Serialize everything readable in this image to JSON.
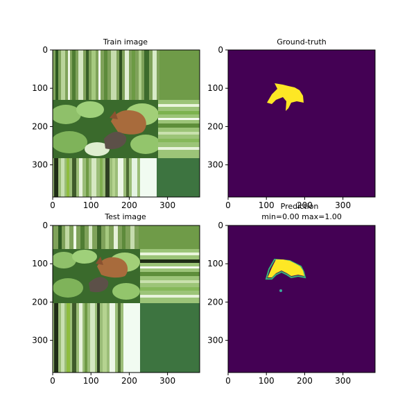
{
  "figure": {
    "panels": [
      {
        "id": "train-image",
        "title": "Train image",
        "xticks": [
          "0",
          "100",
          "200",
          "300"
        ],
        "yticks": [
          "0",
          "100",
          "200",
          "300"
        ]
      },
      {
        "id": "ground-truth",
        "title": "Ground-truth",
        "xticks": [
          "0",
          "100",
          "200",
          "300"
        ],
        "yticks": [
          "0",
          "100",
          "200",
          "300"
        ]
      },
      {
        "id": "test-image",
        "title": "Test image",
        "xticks": [
          "0",
          "100",
          "200",
          "300"
        ],
        "yticks": [
          "0",
          "100",
          "200",
          "300"
        ]
      },
      {
        "id": "prediction",
        "title": "Prediction",
        "subtitle": "min=0.00 max=1.00",
        "xticks": [
          "0",
          "100",
          "200",
          "300"
        ],
        "yticks": [
          "0",
          "100",
          "200",
          "300"
        ]
      }
    ]
  },
  "chart_data": [
    {
      "type": "heatmap",
      "title": "Train image",
      "xlim": [
        0,
        384
      ],
      "ylim": [
        384,
        0
      ],
      "xticks": [
        0,
        100,
        200,
        300
      ],
      "yticks": [
        0,
        100,
        200,
        300
      ],
      "content": "photo"
    },
    {
      "type": "heatmap",
      "title": "Ground-truth",
      "xlim": [
        0,
        384
      ],
      "ylim": [
        384,
        0
      ],
      "xticks": [
        0,
        100,
        200,
        300
      ],
      "yticks": [
        0,
        100,
        200,
        300
      ],
      "colors": {
        "background": "#440154",
        "mask": "#fde725"
      }
    },
    {
      "type": "heatmap",
      "title": "Test image",
      "xlim": [
        0,
        384
      ],
      "ylim": [
        384,
        0
      ],
      "xticks": [
        0,
        100,
        200,
        300
      ],
      "yticks": [
        0,
        100,
        200,
        300
      ],
      "content": "photo"
    },
    {
      "type": "heatmap",
      "title": "Prediction",
      "subtitle": "min=0.00 max=1.00",
      "value_range": [
        0.0,
        1.0
      ],
      "xlim": [
        0,
        384
      ],
      "ylim": [
        384,
        0
      ],
      "xticks": [
        0,
        100,
        200,
        300
      ],
      "yticks": [
        0,
        100,
        200,
        300
      ],
      "colors": {
        "background": "#440154",
        "mask": "#fde725",
        "edge": "#35b779"
      }
    }
  ]
}
